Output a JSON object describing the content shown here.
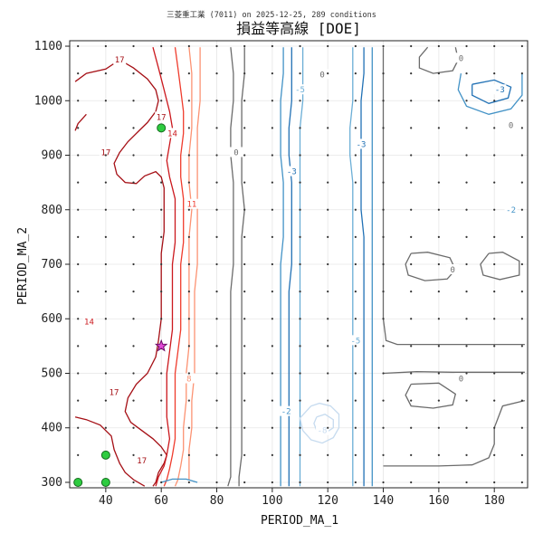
{
  "chart_data": {
    "type": "contour",
    "title": "損益等高線 [DOE]",
    "subtitle": "三菱重工業 (7011) on 2025-12-25, 289 conditions",
    "xlabel": "PERIOD_MA_1",
    "ylabel": "PERIOD_MA_2",
    "xlim": [
      27,
      192
    ],
    "ylim": [
      290,
      1110
    ],
    "x_ticks": [
      40,
      60,
      80,
      100,
      120,
      140,
      160,
      180
    ],
    "y_ticks": [
      300,
      400,
      500,
      600,
      700,
      800,
      900,
      1000,
      1100
    ],
    "grid": true,
    "contour_levels": [
      {
        "level": 17,
        "color": "#a50f15"
      },
      {
        "level": 14,
        "color": "#cb181d"
      },
      {
        "level": 11,
        "color": "#ef3b2c"
      },
      {
        "level": 8,
        "color": "#fc9272"
      },
      {
        "level": 0,
        "color": "#6b6b6b"
      },
      {
        "level": -2,
        "color": "#4292c6"
      },
      {
        "level": -3,
        "color": "#2171b5"
      },
      {
        "level": -5,
        "color": "#6baed6"
      },
      {
        "level": -8,
        "color": "#c6dbef"
      }
    ],
    "contour_label_texts": [
      "17",
      "17",
      "17",
      "17",
      "14",
      "14",
      "11",
      "8",
      "0",
      "0",
      "0",
      "0",
      "0",
      "0",
      "-2",
      "-2",
      "-3",
      "-3",
      "-3",
      "-5",
      "-5",
      "-8"
    ],
    "sample_grid": {
      "x": [
        30,
        40,
        50,
        60,
        70,
        80,
        90,
        100,
        110,
        120,
        130,
        140,
        150,
        160,
        170,
        180,
        190
      ],
      "y": [
        300,
        350,
        400,
        450,
        500,
        550,
        600,
        650,
        700,
        750,
        800,
        850,
        900,
        950,
        1000,
        1050,
        1100
      ]
    },
    "highlight_points": [
      {
        "x": 30,
        "y": 300
      },
      {
        "x": 40,
        "y": 300
      },
      {
        "x": 40,
        "y": 350
      },
      {
        "x": 60,
        "y": 950
      }
    ],
    "best_point": {
      "x": 60,
      "y": 550
    }
  }
}
